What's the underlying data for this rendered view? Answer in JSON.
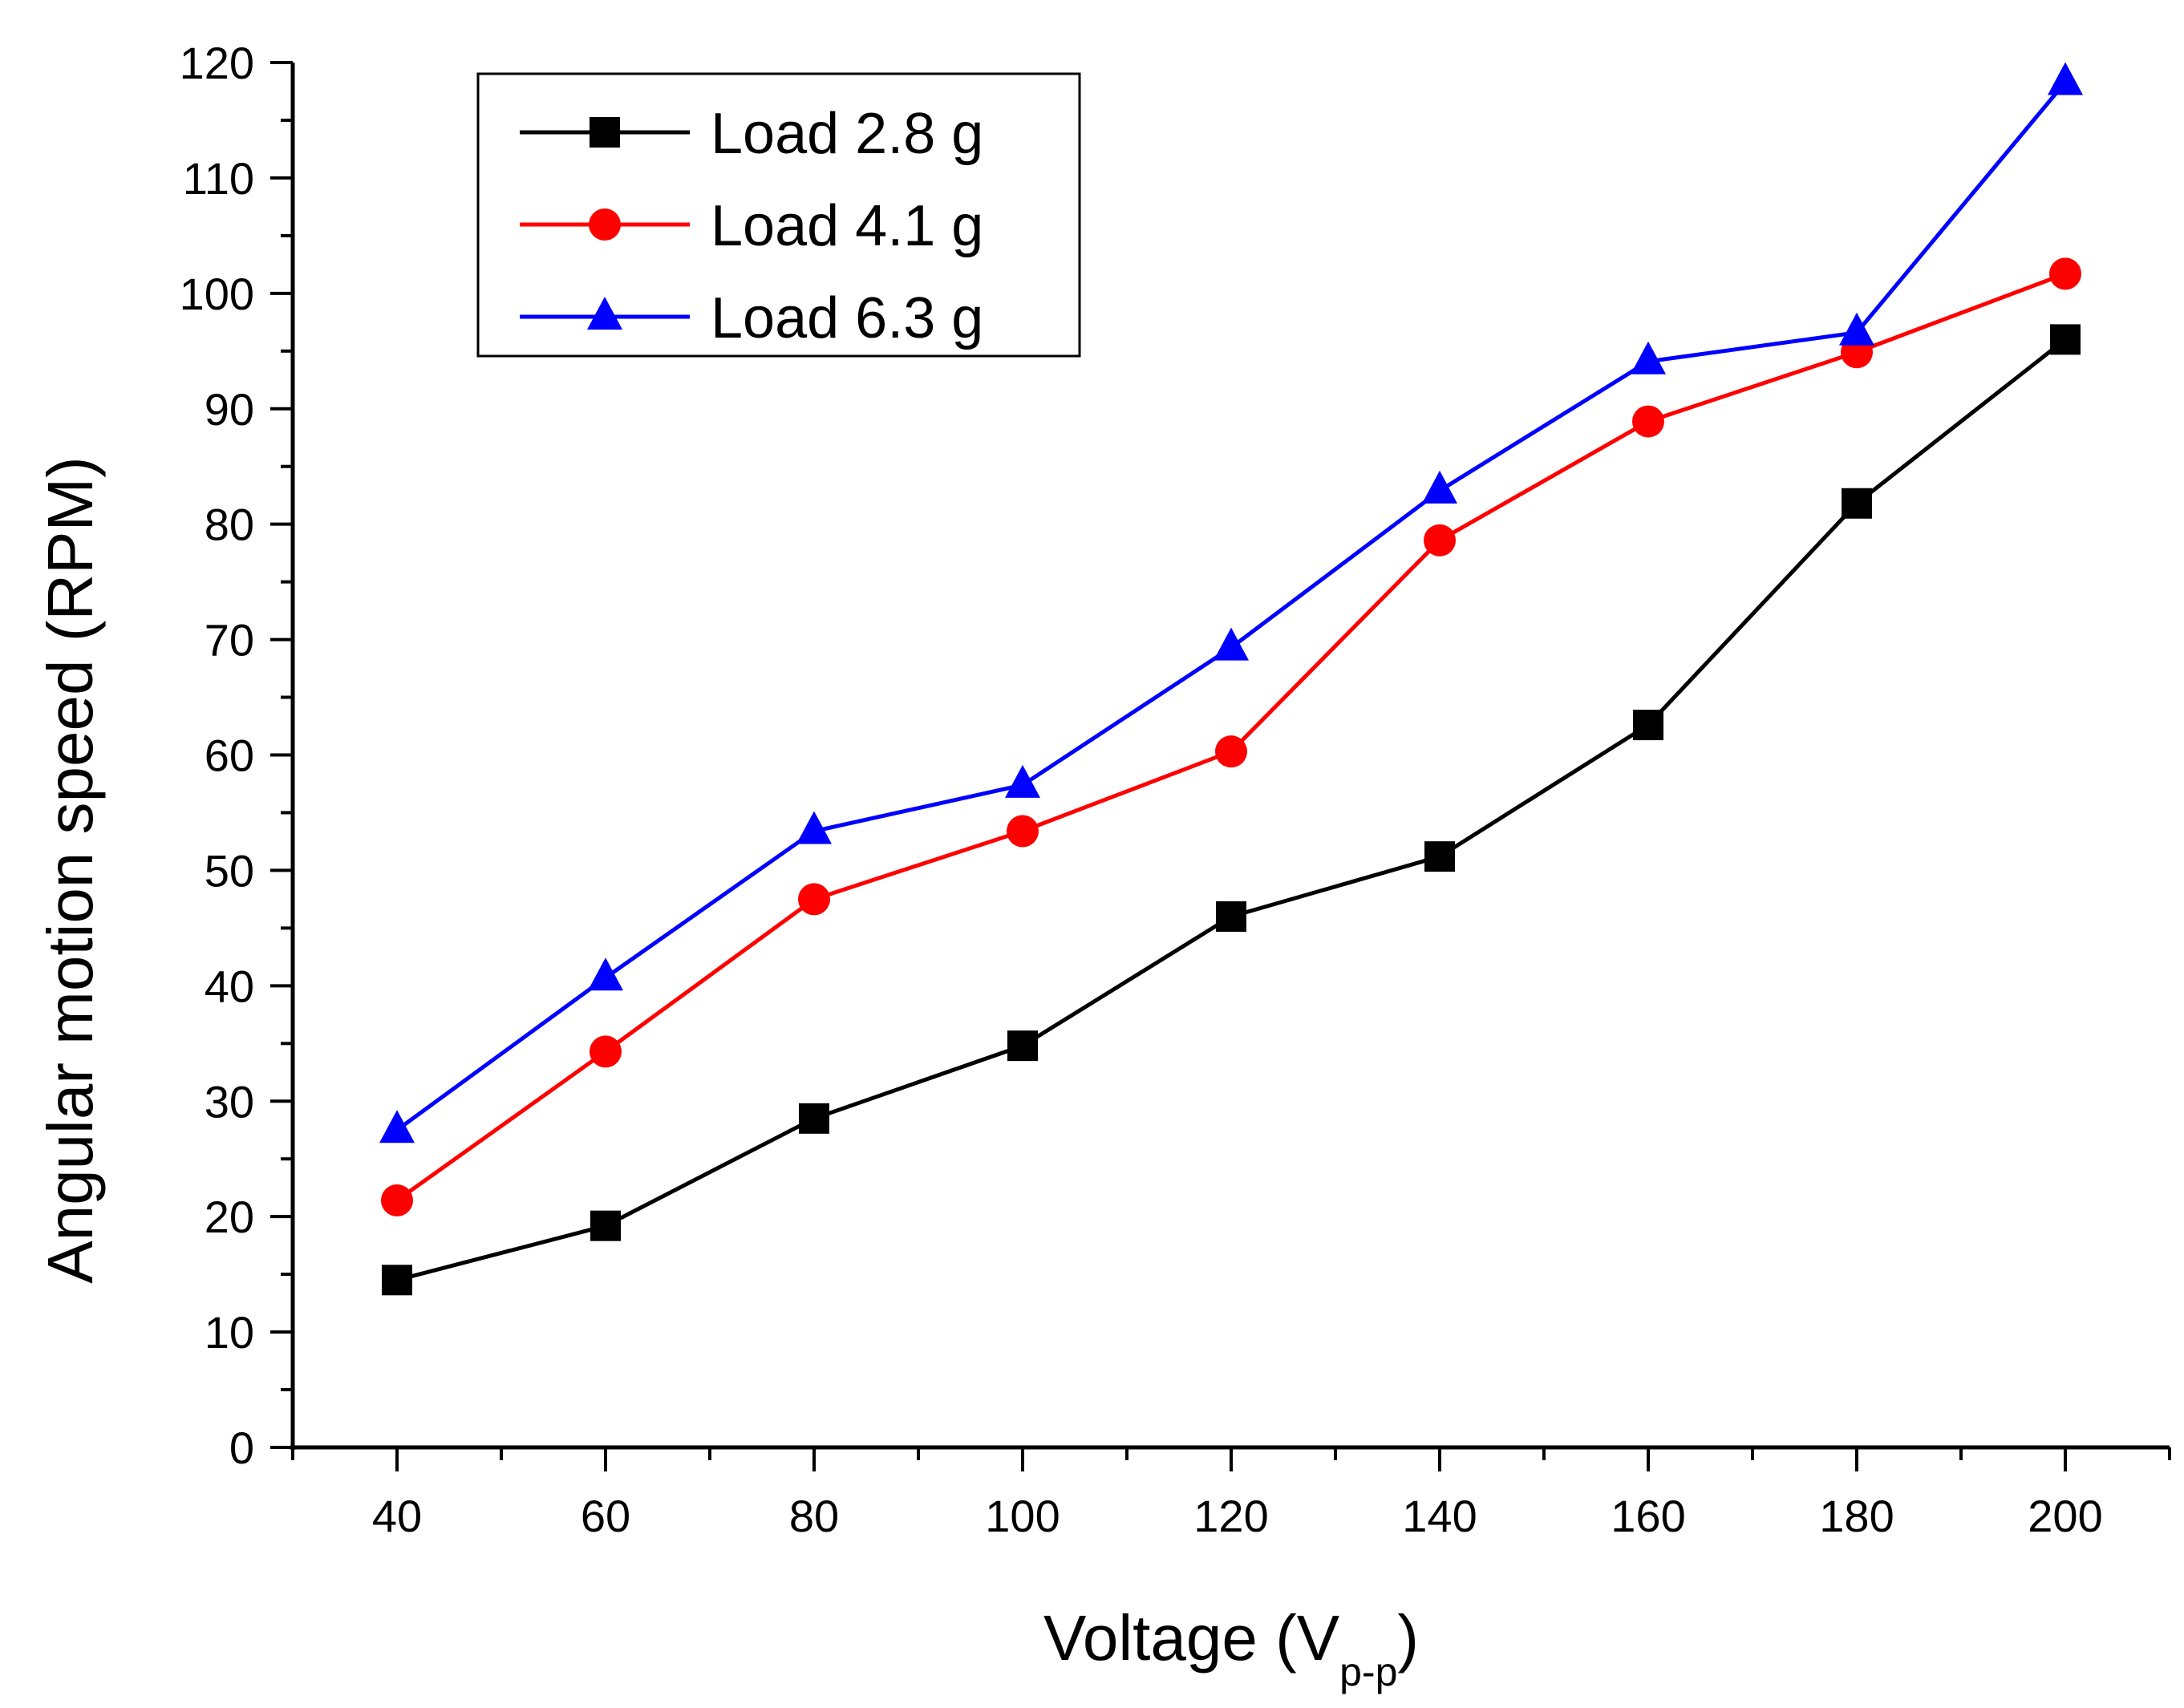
{
  "chart_data": {
    "type": "line",
    "title": "",
    "xlabel": "Voltage (V",
    "xlabel_subscript": "p-p",
    "xlabel_close": ")",
    "ylabel": "Angular motion speed (RPM)",
    "xlim": [
      30,
      210
    ],
    "ylim": [
      0,
      120
    ],
    "xticks": [
      40,
      60,
      80,
      100,
      120,
      140,
      160,
      180,
      200
    ],
    "yticks": [
      0,
      10,
      20,
      30,
      40,
      50,
      60,
      70,
      80,
      90,
      100,
      110,
      120
    ],
    "x": [
      40,
      60,
      80,
      100,
      120,
      140,
      160,
      180,
      200
    ],
    "legend_position": "top-left",
    "grid": false,
    "series": [
      {
        "name": "Load 2.8 g",
        "color": "#000000",
        "marker": "square",
        "values": [
          14.5,
          19.2,
          28.5,
          34.8,
          46,
          51.2,
          62.6,
          81.8,
          96
        ]
      },
      {
        "name": "Load 4.1 g",
        "color": "#ff0000",
        "marker": "circle",
        "values": [
          21.4,
          34.3,
          47.5,
          53.4,
          60.3,
          78.6,
          88.9,
          94.9,
          101.7
        ]
      },
      {
        "name": "Load 6.3 g",
        "color": "#0000ff",
        "marker": "triangle",
        "values": [
          27.5,
          40.7,
          53.4,
          57.4,
          69.3,
          82.9,
          94.1,
          96.6,
          118.3
        ]
      }
    ]
  }
}
